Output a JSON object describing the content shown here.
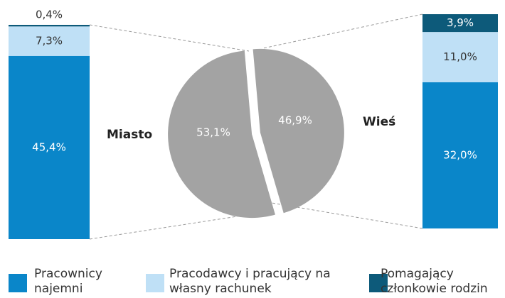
{
  "chart_data": [
    {
      "type": "pie",
      "categories": [
        "Miasto",
        "Wieś"
      ],
      "values": [
        53.1,
        46.9
      ],
      "value_labels": [
        "53,1%",
        "46,9%"
      ],
      "color": "#a3a3a3"
    },
    {
      "type": "bar",
      "stacked": true,
      "series": [
        {
          "name": "Pracownicy najemni",
          "color": "#0a86c9",
          "values": [
            45.4,
            32.0
          ],
          "value_labels": [
            "45,4%",
            "32,0%"
          ]
        },
        {
          "name": "Pracodawcy i pracujący na własny rachunek",
          "color": "#bfe0f6",
          "values": [
            7.3,
            11.0
          ],
          "value_labels": [
            "7,3%",
            "11,0%"
          ]
        },
        {
          "name": "Pomagający członkowie rodzin",
          "color": "#0d5a7a",
          "values": [
            0.4,
            3.9
          ],
          "value_labels": [
            "0,4%",
            "3,9%"
          ]
        }
      ]
    }
  ]
}
